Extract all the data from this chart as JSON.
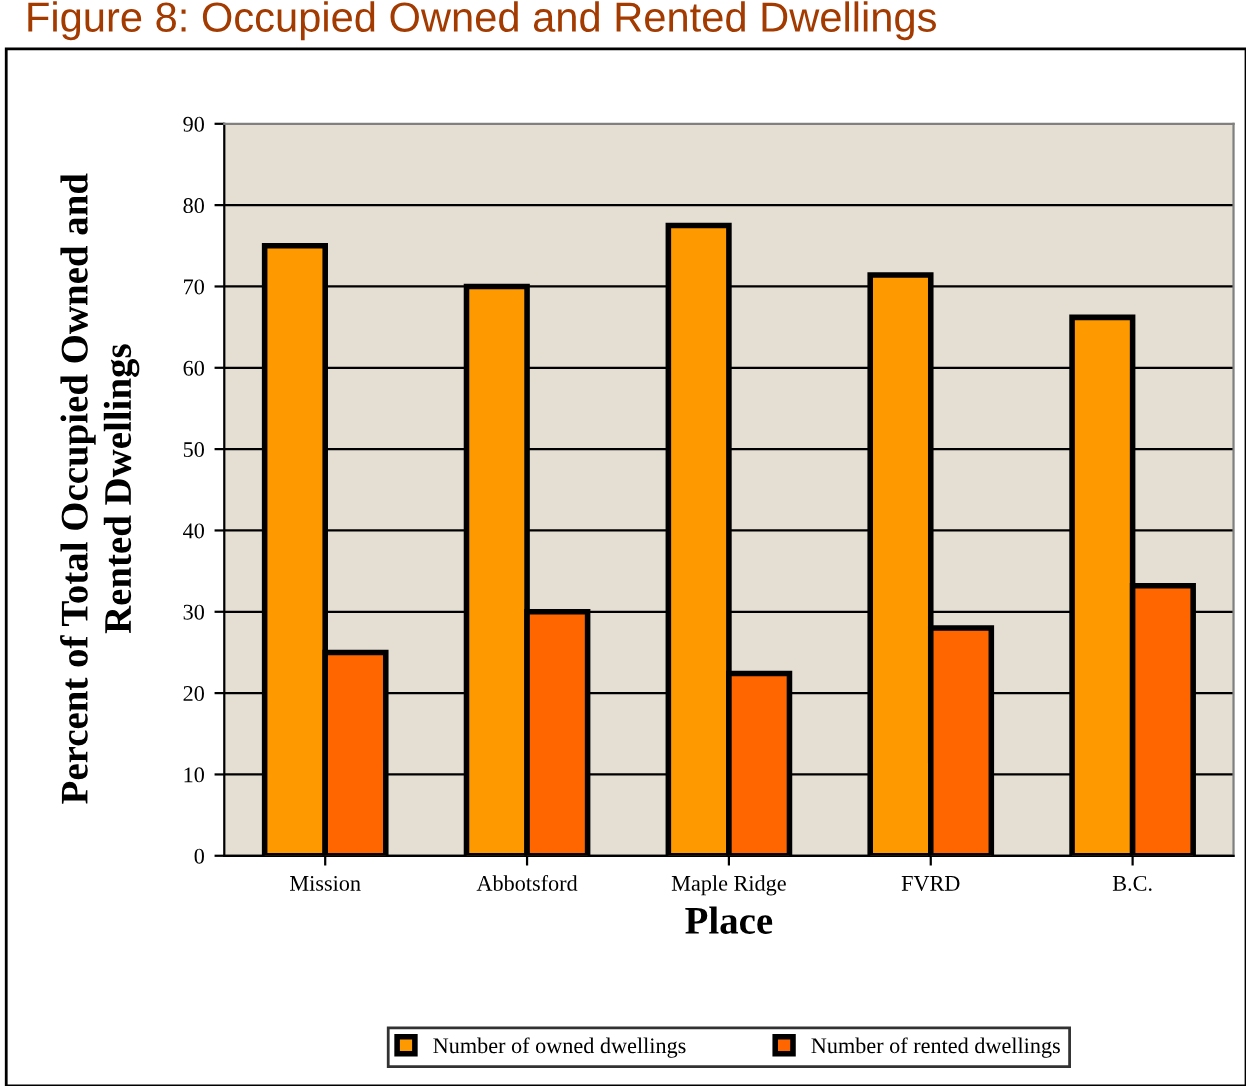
{
  "chart_data": {
    "type": "bar",
    "title": "Figure 8: Occupied Owned and Rented Dwellings",
    "xlabel": "Place",
    "ylabel": "Percent of Total Occupied Owned and\nRented Dwellings",
    "categories": [
      "Mission",
      "Abbotsford",
      "Maple Ridge",
      "FVRD",
      "B.C."
    ],
    "series": [
      {
        "name": "Number of owned dwellings",
        "color": "#ff9900",
        "values": [
          75,
          70,
          77.5,
          71.4,
          66.2
        ]
      },
      {
        "name": "Number of rented dwellings",
        "color": "#ff6600",
        "values": [
          25,
          30,
          22.4,
          28,
          33.2
        ]
      }
    ],
    "ylim": [
      0,
      90
    ],
    "yticks": [
      0,
      10,
      20,
      30,
      40,
      50,
      60,
      70,
      80,
      90
    ],
    "grid": "y",
    "legend": "bottom"
  }
}
